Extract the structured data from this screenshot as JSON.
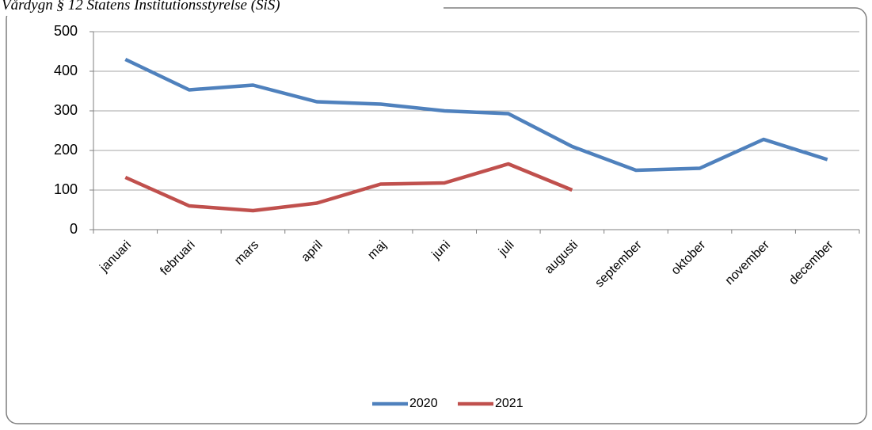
{
  "chart_data": {
    "type": "line",
    "title": "Vårdygn § 12 Statens Institutionsstyrelse (SiS)",
    "categories": [
      "januari",
      "februari",
      "mars",
      "april",
      "maj",
      "juni",
      "juli",
      "augusti",
      "september",
      "oktober",
      "november",
      "december"
    ],
    "series": [
      {
        "name": "2020",
        "color": "#4f81bd",
        "values": [
          430,
          353,
          365,
          323,
          317,
          300,
          293,
          210,
          150,
          155,
          228,
          177
        ]
      },
      {
        "name": "2021",
        "color": "#c0504d",
        "values": [
          132,
          60,
          48,
          67,
          115,
          118,
          166,
          100,
          null,
          null,
          null,
          null
        ]
      }
    ],
    "ylim": [
      0,
      500
    ],
    "yticks": [
      0,
      100,
      200,
      300,
      400,
      500
    ],
    "grid": true,
    "legend": "bottom"
  }
}
